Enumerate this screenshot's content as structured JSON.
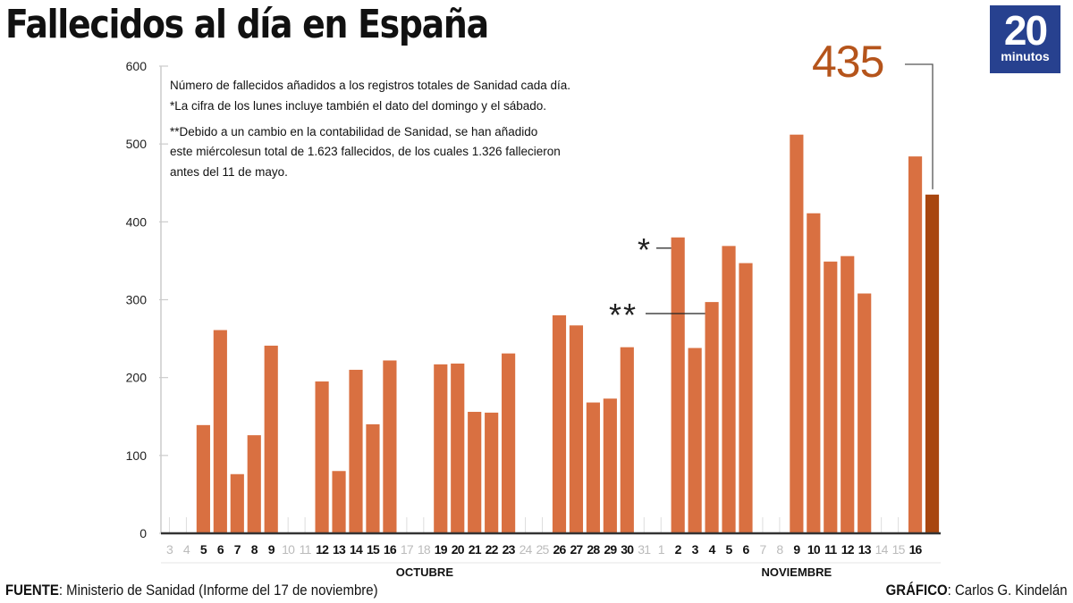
{
  "header": {
    "title": "Fallecidos al día en España",
    "logo_number": "20",
    "logo_word": "minutos"
  },
  "notes": {
    "line1": "Número de fallecidos añadidos a los registros totales de Sanidad cada día.",
    "line2": "*La cifra de los lunes incluye también el dato del domingo y el sábado.",
    "line3": "**Debido a un cambio en la contabilidad de Sanidad, se han añadido",
    "line4": "este miércolesun total de 1.623 fallecidos, de los cuales 1.326 fallecieron",
    "line5": "antes del 11 de mayo."
  },
  "highlight": {
    "value_label": "435",
    "color": "#b5541b"
  },
  "footer": {
    "source_label": "FUENTE",
    "source_text": ": Ministerio de Sanidad (Informe del 17 de noviembre)",
    "credit_label": "GRÁFICO",
    "credit_text": ": Carlos G. Kindelán"
  },
  "colors": {
    "bar": "#d97041",
    "bar_highlight": "#a8460f",
    "axis": "#333333",
    "grid": "#cccccc",
    "muted_tick": "#bbbbbb"
  },
  "chart_data": {
    "type": "bar",
    "title": "Fallecidos al día en España",
    "xlabel": "",
    "ylabel": "",
    "ylim": [
      0,
      600
    ],
    "yticks": [
      0,
      100,
      200,
      300,
      400,
      500,
      600
    ],
    "grid": true,
    "months": [
      {
        "label": "OCTUBRE",
        "start_index": 0,
        "end_index": 28
      },
      {
        "label": "NOVIEMBRE",
        "start_index": 29,
        "end_index": 45
      }
    ],
    "categories": [
      "3",
      "4",
      "5",
      "6",
      "7",
      "8",
      "9",
      "10",
      "11",
      "12",
      "13",
      "14",
      "15",
      "16",
      "17",
      "18",
      "19",
      "20",
      "21",
      "22",
      "23",
      "24",
      "25",
      "26",
      "27",
      "28",
      "29",
      "30",
      "31",
      "1",
      "2",
      "3",
      "4",
      "5",
      "6",
      "7",
      "8",
      "9",
      "10",
      "11",
      "12",
      "13",
      "14",
      "15",
      "16",
      ""
    ],
    "label_muted": [
      true,
      true,
      false,
      false,
      false,
      false,
      false,
      true,
      true,
      false,
      false,
      false,
      false,
      false,
      true,
      true,
      false,
      false,
      false,
      false,
      false,
      true,
      true,
      false,
      false,
      false,
      false,
      false,
      true,
      true,
      false,
      false,
      false,
      false,
      false,
      true,
      true,
      false,
      false,
      false,
      false,
      false,
      true,
      true,
      false,
      false
    ],
    "values": [
      null,
      null,
      139,
      261,
      76,
      126,
      241,
      null,
      null,
      195,
      80,
      210,
      140,
      222,
      null,
      null,
      217,
      218,
      156,
      155,
      231,
      null,
      null,
      280,
      267,
      168,
      173,
      239,
      null,
      null,
      380,
      238,
      297,
      369,
      347,
      null,
      null,
      512,
      411,
      349,
      356,
      308,
      null,
      null,
      484,
      435
    ],
    "highlight_index": 45,
    "annotations": [
      {
        "text": "*",
        "index": 30,
        "note": "Monday includes Sunday and Saturday"
      },
      {
        "text": "**",
        "index": 32,
        "note": "Accounting change"
      },
      {
        "text": "435",
        "index": 45
      }
    ]
  }
}
